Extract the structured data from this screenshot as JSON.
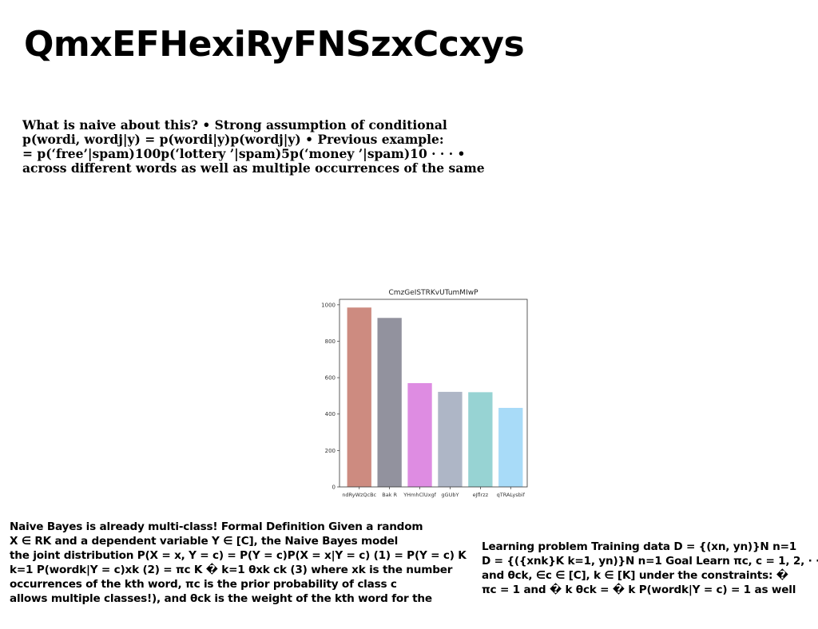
{
  "page": {
    "title": "QmxEFHexiRyFNSzxCcxys",
    "paragraph1": [
      "What is naive about this? • Strong assumption of conditional",
      "p(wordi, wordj|y) = p(wordi|y)p(wordj|y) • Previous example:",
      "= p(‘free’|spam)100p(‘lottery ’|spam)5p(‘money ’|spam)10 · · · •",
      "across different words as well as multiple occurrences of the same"
    ],
    "paragraph2": [
      "Naive Bayes is already multi-class! Formal Definition Given a random",
      "X ∈ RK and a dependent variable Y ∈ [C], the Naive Bayes model",
      "the joint distribution P(X = x, Y = c) = P(Y = c)P(X = x|Y = c) (1) = P(Y = c) K",
      "k=1 P(wordk|Y = c)xk (2) = πc K � k=1 θxk ck (3) where xk is the number",
      "occurrences of the kth word, πc is the prior probability of class c",
      "allows multiple classes!), and θck is the weight of the kth word for the"
    ],
    "paragraph3": [
      "Learning problem Training data D = {(xn, yn)}N n=1",
      "D = {({xnk}K k=1, yn)}N n=1 Goal Learn πc, c = 1, 2, · · · ,",
      "and θck, ∈c ∈ [C], k ∈ [K] under the constraints: �",
      "πc = 1 and � k θck = � k P(wordk|Y = c) = 1 as well"
    ]
  },
  "chart_data": {
    "type": "bar",
    "title": "CmzGeISTRKvUTumMIwP",
    "categories": [
      "ndRyWzQcBc",
      "Bak R",
      "YHmhClUxgf",
      "gGUbY",
      "eJflrzz",
      "qTRALysbif"
    ],
    "values": [
      985,
      928,
      570,
      522,
      520,
      434
    ],
    "colors": [
      "#cd8b80",
      "#92929e",
      "#de8ce2",
      "#aeb6c6",
      "#97d3d3",
      "#a8dbf8"
    ],
    "ylim": [
      0,
      1030
    ],
    "yticks": [
      0,
      200,
      400,
      600,
      800,
      1000
    ],
    "xlabel": "",
    "ylabel": "",
    "grid": false
  }
}
